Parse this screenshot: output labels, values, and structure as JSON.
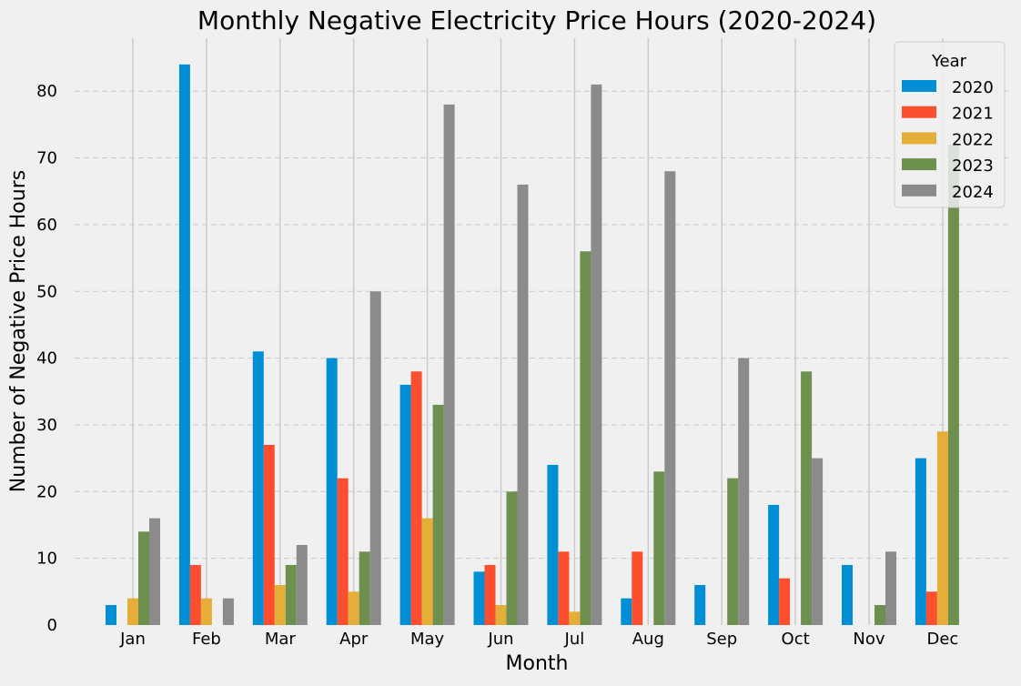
{
  "chart_data": {
    "type": "bar",
    "title": "Monthly Negative Electricity Price Hours (2020-2024)",
    "xlabel": "Month",
    "ylabel": "Number of Negative Price Hours",
    "categories": [
      "Jan",
      "Feb",
      "Mar",
      "Apr",
      "May",
      "Jun",
      "Jul",
      "Aug",
      "Sep",
      "Oct",
      "Nov",
      "Dec"
    ],
    "ylim": [
      0,
      88
    ],
    "yticks": [
      0,
      10,
      20,
      30,
      40,
      50,
      60,
      70,
      80
    ],
    "grid": true,
    "legend": {
      "title": "Year",
      "placement": "top-right"
    },
    "series": [
      {
        "name": "2020",
        "color": "#008fd5",
        "values": [
          3,
          84,
          41,
          40,
          36,
          8,
          24,
          4,
          6,
          18,
          9,
          25
        ]
      },
      {
        "name": "2021",
        "color": "#fc4f30",
        "values": [
          0,
          9,
          27,
          22,
          38,
          9,
          11,
          11,
          0,
          7,
          0,
          5
        ]
      },
      {
        "name": "2022",
        "color": "#e5ae38",
        "values": [
          4,
          4,
          6,
          5,
          16,
          3,
          2,
          0,
          0,
          0,
          0,
          29
        ]
      },
      {
        "name": "2023",
        "color": "#6d904f",
        "values": [
          14,
          0,
          9,
          11,
          33,
          20,
          56,
          23,
          22,
          38,
          3,
          72
        ]
      },
      {
        "name": "2024",
        "color": "#8b8b8b",
        "values": [
          16,
          4,
          12,
          50,
          78,
          66,
          81,
          68,
          40,
          25,
          11,
          0
        ]
      }
    ]
  }
}
